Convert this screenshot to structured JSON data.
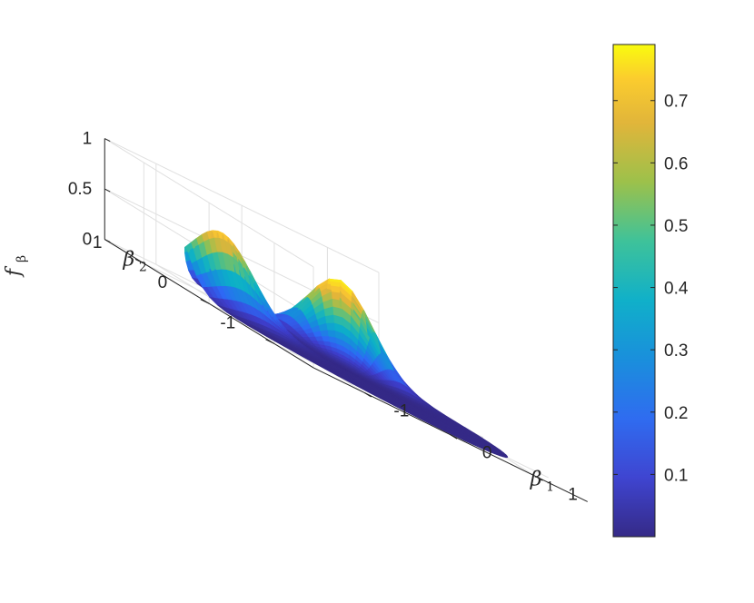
{
  "chart_data": {
    "type": "surface",
    "description_fields": {
      "xlabel": "β1",
      "ylabel": "β2",
      "zlabel": "fβ"
    },
    "x_axis": {
      "label_main": "β",
      "label_sub": "1",
      "ticks": [
        -1,
        0,
        1
      ],
      "tick_labels": [
        "-1",
        "0",
        "1"
      ],
      "lim": [
        -1.6,
        1.6
      ]
    },
    "y_axis": {
      "label_main": "β",
      "label_sub": "2",
      "ticks": [
        -1,
        0,
        1
      ],
      "tick_labels": [
        "-1",
        "0",
        "1"
      ],
      "lim": [
        -1.6,
        1.6
      ]
    },
    "z_axis": {
      "label_main": "f",
      "label_sub": "β",
      "ticks": [
        0,
        0.5,
        1
      ],
      "tick_labels": [
        "0",
        "0.5",
        "1"
      ],
      "lim": [
        0,
        1
      ]
    },
    "domain": "disk of radius 1.5 centered at origin",
    "peaks": [
      {
        "beta1": -1.0,
        "beta2": 0.6,
        "height": 0.72
      },
      {
        "beta1": 0.7,
        "beta2": 1.0,
        "height": 0.79
      }
    ],
    "colorbar": {
      "colormap": "parula",
      "range": [
        0.0,
        0.79
      ],
      "ticks": [
        0.1,
        0.2,
        0.3,
        0.4,
        0.5,
        0.6,
        0.7
      ],
      "tick_labels": [
        "0.1",
        "0.2",
        "0.3",
        "0.4",
        "0.5",
        "0.6",
        "0.7"
      ]
    },
    "grid": true,
    "box": false,
    "colors": {
      "parula_low": "#352a87",
      "parula_mid": "#21b5a7",
      "parula_high": "#f9fb0e",
      "axis": "#262626",
      "grid": "#e0e0e0"
    }
  }
}
